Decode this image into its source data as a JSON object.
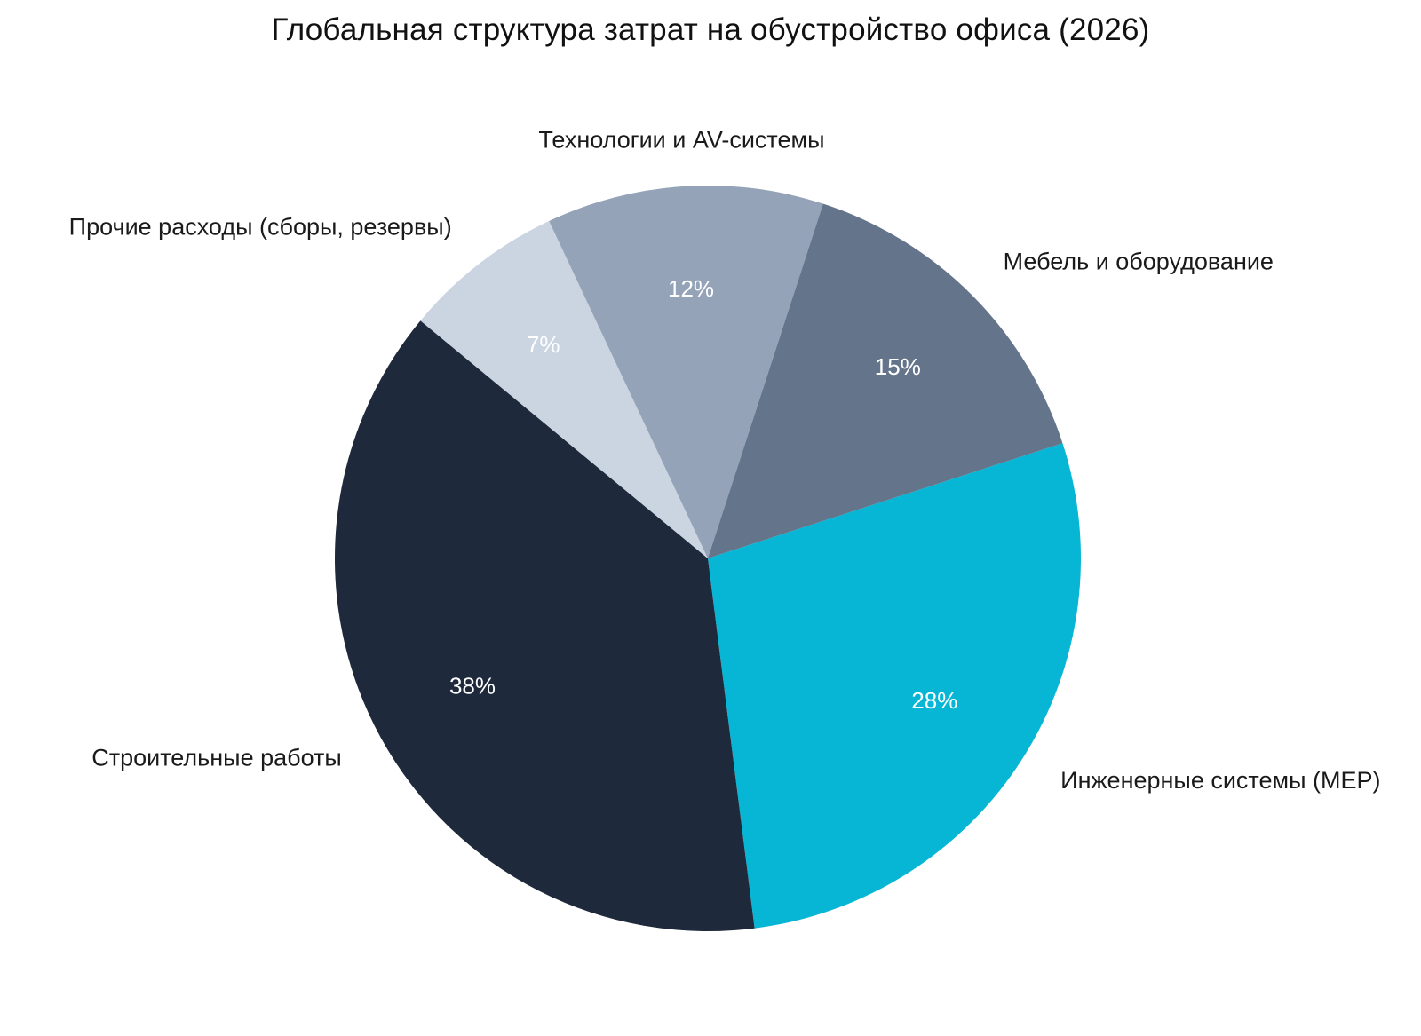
{
  "chart_data": {
    "type": "pie",
    "title": "Глобальная структура затрат на обустройство офиса (2026)",
    "start_angle_deg": 0,
    "direction": "clockwise",
    "slices": [
      {
        "label": "Инженерные системы (MEP)",
        "value": 28,
        "value_label": "28%",
        "color": "#06b6d4"
      },
      {
        "label": "Строительные работы",
        "value": 38,
        "value_label": "38%",
        "color": "#1e293b"
      },
      {
        "label": "Прочие расходы (сборы, резервы)",
        "value": 7,
        "value_label": "7%",
        "color": "#cbd5e1"
      },
      {
        "label": "Технологии и AV-системы",
        "value": 12,
        "value_label": "12%",
        "color": "#94a3b8"
      },
      {
        "label": "Мебель и оборудование",
        "value": 15,
        "value_label": "15%",
        "color": "#64748b"
      }
    ]
  }
}
